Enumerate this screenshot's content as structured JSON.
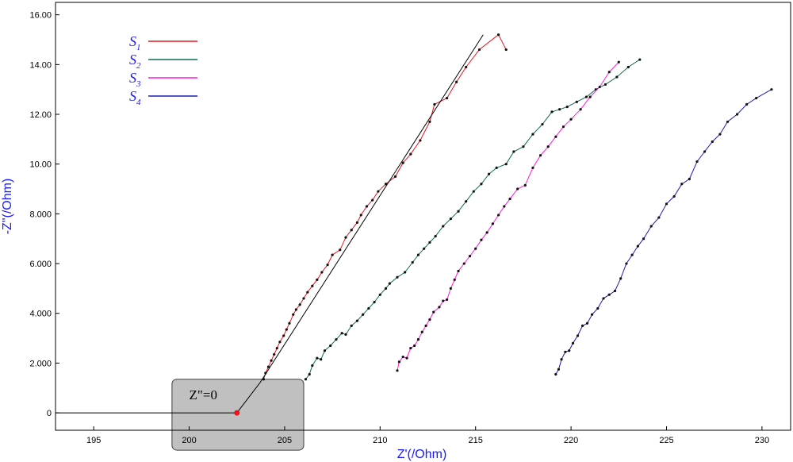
{
  "chart_data": {
    "type": "line",
    "xlabel": "Z'(/Ohm)",
    "ylabel": "-Z\"(/Ohm)",
    "xlim": [
      193,
      231.5
    ],
    "ylim": [
      -0.7,
      16.5
    ],
    "xticks": [
      195,
      200,
      205,
      210,
      215,
      220,
      225,
      230
    ],
    "xtick_labels": [
      "195",
      "200",
      "205",
      "210",
      "215",
      "220",
      "225",
      "230"
    ],
    "yticks": [
      0,
      2,
      4,
      6,
      8,
      10,
      12,
      14,
      16
    ],
    "ytick_labels": [
      "0",
      "2.000",
      "4.000",
      "6.000",
      "8.000",
      "10.00",
      "12.00",
      "14.00",
      "16.00"
    ],
    "grid": false,
    "legend_position": "top-left",
    "series": [
      {
        "name": "S1",
        "name_base": "S",
        "name_sub": "1",
        "color": "#e8141e",
        "points": [
          [
            203.9,
            1.35
          ],
          [
            204.0,
            1.6
          ],
          [
            204.15,
            1.85
          ],
          [
            204.3,
            2.1
          ],
          [
            204.45,
            2.35
          ],
          [
            204.6,
            2.6
          ],
          [
            204.75,
            2.85
          ],
          [
            204.95,
            3.1
          ],
          [
            205.1,
            3.35
          ],
          [
            205.25,
            3.6
          ],
          [
            205.45,
            3.95
          ],
          [
            205.6,
            4.15
          ],
          [
            205.8,
            4.35
          ],
          [
            206.0,
            4.6
          ],
          [
            206.2,
            4.85
          ],
          [
            206.45,
            5.1
          ],
          [
            206.7,
            5.35
          ],
          [
            206.95,
            5.65
          ],
          [
            207.25,
            5.95
          ],
          [
            207.5,
            6.35
          ],
          [
            207.9,
            6.55
          ],
          [
            208.2,
            7.05
          ],
          [
            208.5,
            7.35
          ],
          [
            208.8,
            7.65
          ],
          [
            209.0,
            7.95
          ],
          [
            209.3,
            8.3
          ],
          [
            209.6,
            8.55
          ],
          [
            209.9,
            8.9
          ],
          [
            210.3,
            9.2
          ],
          [
            210.8,
            9.5
          ],
          [
            211.2,
            10.05
          ],
          [
            211.6,
            10.4
          ],
          [
            212.1,
            10.95
          ],
          [
            212.6,
            11.7
          ],
          [
            212.85,
            12.4
          ],
          [
            213.5,
            12.65
          ],
          [
            214.0,
            13.3
          ],
          [
            214.5,
            13.9
          ],
          [
            215.2,
            14.6
          ],
          [
            216.2,
            15.2
          ],
          [
            216.6,
            14.6
          ]
        ]
      },
      {
        "name": "S2",
        "name_base": "S",
        "name_sub": "2",
        "color": "#0f6b57",
        "points": [
          [
            206.1,
            1.35
          ],
          [
            206.3,
            1.55
          ],
          [
            206.45,
            1.9
          ],
          [
            206.7,
            2.2
          ],
          [
            206.9,
            2.15
          ],
          [
            207.1,
            2.5
          ],
          [
            207.4,
            2.7
          ],
          [
            207.7,
            2.95
          ],
          [
            208.0,
            3.2
          ],
          [
            208.2,
            3.15
          ],
          [
            208.5,
            3.5
          ],
          [
            208.8,
            3.7
          ],
          [
            209.1,
            3.95
          ],
          [
            209.4,
            4.2
          ],
          [
            209.7,
            4.45
          ],
          [
            210.0,
            4.75
          ],
          [
            210.3,
            5.0
          ],
          [
            210.5,
            5.2
          ],
          [
            210.9,
            5.45
          ],
          [
            211.3,
            5.65
          ],
          [
            211.7,
            6.05
          ],
          [
            212.0,
            6.35
          ],
          [
            212.3,
            6.6
          ],
          [
            212.6,
            6.85
          ],
          [
            212.9,
            7.1
          ],
          [
            213.3,
            7.5
          ],
          [
            213.7,
            7.8
          ],
          [
            214.1,
            8.1
          ],
          [
            214.5,
            8.5
          ],
          [
            214.9,
            8.9
          ],
          [
            215.3,
            9.2
          ],
          [
            215.7,
            9.6
          ],
          [
            216.1,
            9.85
          ],
          [
            216.6,
            10.0
          ],
          [
            217.0,
            10.5
          ],
          [
            217.5,
            10.7
          ],
          [
            218.0,
            11.2
          ],
          [
            218.5,
            11.6
          ],
          [
            219.0,
            12.1
          ],
          [
            219.4,
            12.2
          ],
          [
            219.8,
            12.3
          ],
          [
            220.3,
            12.5
          ],
          [
            220.8,
            12.7
          ],
          [
            221.3,
            13.0
          ],
          [
            221.8,
            13.2
          ],
          [
            222.4,
            13.5
          ],
          [
            223.0,
            13.9
          ],
          [
            223.6,
            14.2
          ]
        ]
      },
      {
        "name": "S3",
        "name_base": "S",
        "name_sub": "3",
        "color": "#ff1ad9",
        "points": [
          [
            210.9,
            1.7
          ],
          [
            211.0,
            2.05
          ],
          [
            211.2,
            2.25
          ],
          [
            211.4,
            2.2
          ],
          [
            211.6,
            2.6
          ],
          [
            211.8,
            2.7
          ],
          [
            212.0,
            2.95
          ],
          [
            212.2,
            3.25
          ],
          [
            212.4,
            3.5
          ],
          [
            212.6,
            3.75
          ],
          [
            212.8,
            4.05
          ],
          [
            213.1,
            4.25
          ],
          [
            213.3,
            4.5
          ],
          [
            213.5,
            4.55
          ],
          [
            213.7,
            5.0
          ],
          [
            213.9,
            5.35
          ],
          [
            214.1,
            5.7
          ],
          [
            214.4,
            6.0
          ],
          [
            214.7,
            6.3
          ],
          [
            215.0,
            6.6
          ],
          [
            215.3,
            6.95
          ],
          [
            215.6,
            7.25
          ],
          [
            215.9,
            7.6
          ],
          [
            216.2,
            7.95
          ],
          [
            216.5,
            8.3
          ],
          [
            216.8,
            8.6
          ],
          [
            217.2,
            9.0
          ],
          [
            217.6,
            9.15
          ],
          [
            218.0,
            9.85
          ],
          [
            218.4,
            10.35
          ],
          [
            218.8,
            10.7
          ],
          [
            219.2,
            11.1
          ],
          [
            219.6,
            11.5
          ],
          [
            220.0,
            11.8
          ],
          [
            220.5,
            12.2
          ],
          [
            221.0,
            12.7
          ],
          [
            221.5,
            13.1
          ],
          [
            222.0,
            13.7
          ],
          [
            222.5,
            14.1
          ]
        ]
      },
      {
        "name": "S4",
        "name_base": "S",
        "name_sub": "4",
        "color": "#1c1cb4",
        "points": [
          [
            219.2,
            1.55
          ],
          [
            219.35,
            1.75
          ],
          [
            219.5,
            2.15
          ],
          [
            219.7,
            2.45
          ],
          [
            219.9,
            2.5
          ],
          [
            220.1,
            2.8
          ],
          [
            220.35,
            3.1
          ],
          [
            220.6,
            3.5
          ],
          [
            220.85,
            3.6
          ],
          [
            221.1,
            3.95
          ],
          [
            221.4,
            4.2
          ],
          [
            221.7,
            4.6
          ],
          [
            222.0,
            4.75
          ],
          [
            222.3,
            4.9
          ],
          [
            222.6,
            5.4
          ],
          [
            222.9,
            6.0
          ],
          [
            223.2,
            6.35
          ],
          [
            223.5,
            6.7
          ],
          [
            223.8,
            7.0
          ],
          [
            224.2,
            7.5
          ],
          [
            224.6,
            7.85
          ],
          [
            225.0,
            8.4
          ],
          [
            225.4,
            8.7
          ],
          [
            225.8,
            9.2
          ],
          [
            226.2,
            9.4
          ],
          [
            226.6,
            10.1
          ],
          [
            227.0,
            10.5
          ],
          [
            227.4,
            10.9
          ],
          [
            227.8,
            11.2
          ],
          [
            228.2,
            11.7
          ],
          [
            228.7,
            12.0
          ],
          [
            229.2,
            12.4
          ],
          [
            229.7,
            12.65
          ],
          [
            230.5,
            13.0
          ]
        ]
      }
    ],
    "annotations": {
      "tangent_line": {
        "x1": 203.7,
        "y1": 1.2,
        "x2": 215.4,
        "y2": 15.2,
        "color": "#000000"
      },
      "zero_line": {
        "x1": 193,
        "y1": 0.0,
        "x2": 202.5,
        "y2": 0.0,
        "color": "#000000"
      },
      "zero_point": {
        "x": 202.5,
        "y": 0.0,
        "color": "#e8141e"
      },
      "leader": {
        "x1": 202.5,
        "y1": 0.0,
        "x2": 203.7,
        "y2": 1.2
      },
      "zoom_box": {
        "x1": 199.1,
        "x2": 206.0,
        "y1": -1.5,
        "y2": 1.35,
        "fill": "#c0c0c0"
      },
      "box_label": "Z\"=0",
      "box_label_pos": {
        "x": 200.0,
        "y": 0.55
      }
    }
  }
}
